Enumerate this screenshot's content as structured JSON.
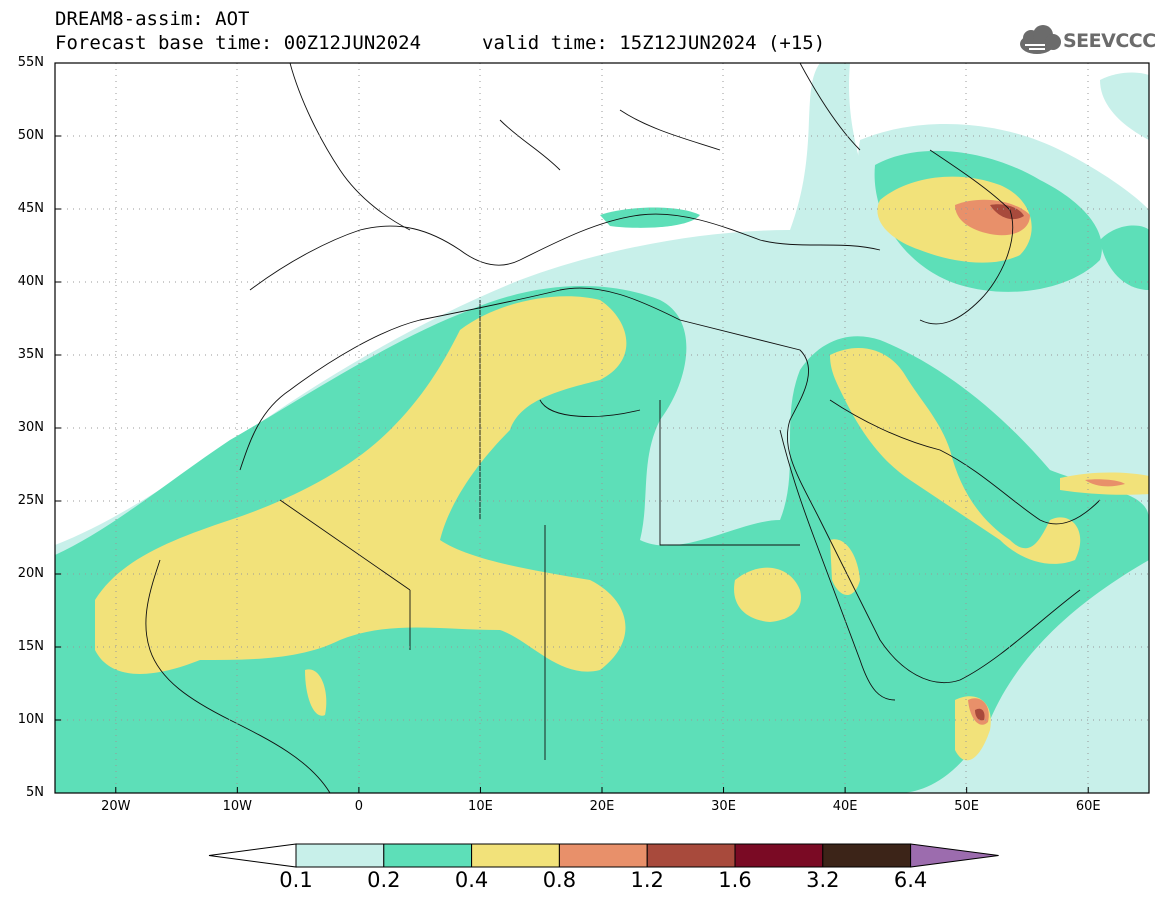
{
  "header": {
    "line1": "DREAM8-assim: AOT",
    "line2": "Forecast base time: 00Z12JUN2024",
    "line3": "valid time: 15Z12JUN2024 (+15)"
  },
  "logo": {
    "text": "SEEVCCC",
    "icon": "cloud-logo-icon",
    "color": "#6b6b6b"
  },
  "map": {
    "lon_range": [
      -25,
      65
    ],
    "lat_range": [
      5,
      55
    ],
    "lat_labels": [
      "55N",
      "50N",
      "45N",
      "40N",
      "35N",
      "30N",
      "25N",
      "20N",
      "15N",
      "10N",
      "5N"
    ],
    "lon_labels": [
      "20W",
      "10W",
      "0",
      "10E",
      "20E",
      "30E",
      "40E",
      "50E",
      "60E"
    ],
    "grid": "dotted"
  },
  "colorbar": {
    "levels": [
      "0.1",
      "0.2",
      "0.4",
      "0.8",
      "1.2",
      "1.6",
      "3.2",
      "6.4"
    ],
    "colors": [
      "#c8f0ea",
      "#5ddfb8",
      "#f2e27a",
      "#e8906a",
      "#a84a3c",
      "#7a0a24",
      "#3c2418",
      "#9c6cae"
    ]
  }
}
